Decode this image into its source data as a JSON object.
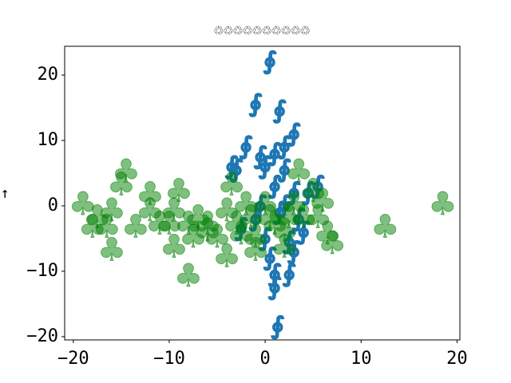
{
  "chart_data": {
    "type": "scatter",
    "title": "♲♲♲♲♲♲♲♲♲♲",
    "y_label": "→",
    "xlim": [
      -20.9,
      20.3
    ],
    "ylim": [
      -20.5,
      24.4
    ],
    "xticks": [
      {
        "value": -20,
        "label": "−20"
      },
      {
        "value": -10,
        "label": "−10"
      },
      0,
      10,
      20
    ],
    "yticks": [
      {
        "value": -20,
        "label": "−20"
      },
      {
        "value": -10,
        "label": "−10"
      },
      0,
      10,
      20
    ],
    "series": [
      {
        "color": "#1f77b4",
        "marker": "∮",
        "alpha": 1,
        "x": [
          0.5,
          -1,
          1.5,
          3,
          2,
          1,
          -0.5,
          -3.5,
          -3,
          0,
          2,
          5.5,
          4.5,
          1,
          -0.5,
          1.5,
          3.5,
          4,
          2.5,
          3,
          0.5,
          1,
          2.5,
          1,
          1.3,
          -2.5,
          -1,
          0,
          3,
          2,
          -2
        ],
        "y": [
          22,
          15.5,
          14.5,
          11,
          9,
          8,
          7.5,
          6,
          5.5,
          6,
          5.5,
          3,
          2,
          3,
          0,
          -1,
          -2,
          -4,
          -5.5,
          -7,
          -8,
          -10.5,
          -10.5,
          -12.5,
          -18.5,
          -3.5,
          -2,
          -5,
          2,
          0,
          9
        ]
      },
      {
        "color": "green",
        "marker": "♣",
        "alpha": 0.5,
        "x": [
          -19,
          -17.5,
          -18,
          -16,
          -16.5,
          -16,
          -14.5,
          -15,
          -13.5,
          -12,
          -12,
          -11,
          -10,
          -9.5,
          -9.5,
          -9,
          -8,
          -8,
          -7.5,
          -7,
          -6,
          -5,
          -4,
          -4,
          -3.5,
          -3,
          -2,
          -1.5,
          -1,
          -1,
          0,
          0.5,
          1,
          2,
          2.5,
          3,
          3.5,
          4,
          5,
          5.5,
          6,
          6.5,
          7,
          12.5,
          18.5,
          2,
          -6,
          -2.5
        ],
        "y": [
          0,
          -2,
          -3.5,
          -1,
          -3.5,
          -7,
          5,
          3,
          -3.5,
          -1,
          1.5,
          -3,
          -3,
          -1,
          -6.5,
          2,
          -3,
          -11,
          -5,
          -2,
          -4,
          -5,
          -1,
          -8,
          3,
          -3,
          0,
          -2,
          -5,
          -7,
          0,
          -2,
          -3,
          -6.5,
          -2,
          0,
          5,
          -2,
          2,
          -2,
          0.5,
          -4.5,
          -6,
          -3.5,
          0,
          -4,
          -3,
          -4.5
        ]
      }
    ]
  }
}
